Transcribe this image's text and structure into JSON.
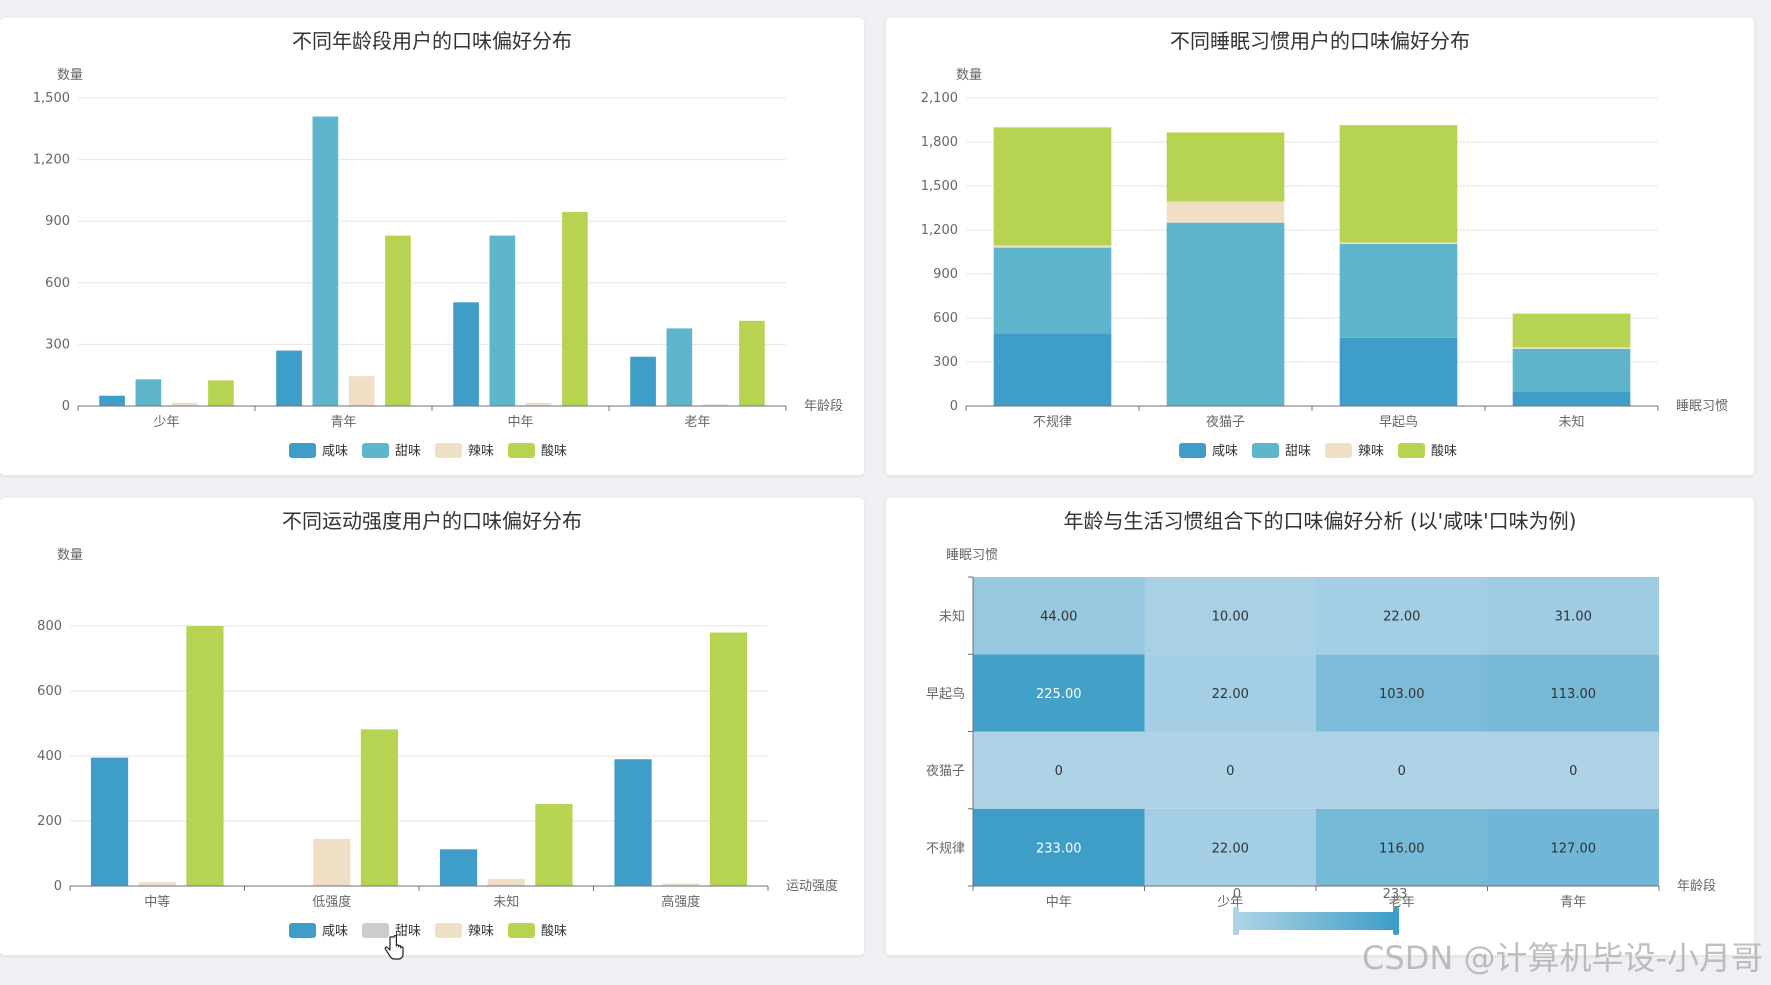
{
  "colors": {
    "salty": "#3e9ec8",
    "sweet": "#5eb5cc",
    "spicy": "#efdfc4",
    "sour": "#b6d452",
    "disabled": "#cccccc",
    "heat_low": "#aed3e6",
    "heat_high": "#3e9ec8"
  },
  "charts": [
    {
      "title": "不同年龄段用户的口味偏好分布",
      "y_name": "数量",
      "x_name": "年龄段"
    },
    {
      "title": "不同睡眠习惯用户的口味偏好分布",
      "y_name": "数量",
      "x_name": "睡眠习惯"
    },
    {
      "title": "不同运动强度用户的口味偏好分布",
      "y_name": "数量",
      "x_name": "运动强度"
    },
    {
      "title": "年龄与生活习惯组合下的口味偏好分析 (以'咸味'口味为例)",
      "y_name": "睡眠习惯",
      "x_name": "年龄段",
      "visualmap_min": "0",
      "visualmap_max": "233"
    }
  ],
  "chart_data": [
    {
      "type": "bar",
      "stacked": false,
      "categories": [
        "少年",
        "青年",
        "中年",
        "老年"
      ],
      "ylim": [
        0,
        1500
      ],
      "yticks": [
        "0",
        "300",
        "600",
        "900",
        "1,200",
        "1,500"
      ],
      "series": [
        {
          "name": "咸味",
          "values": [
            50,
            270,
            505,
            240
          ],
          "visible": true
        },
        {
          "name": "甜味",
          "values": [
            130,
            1410,
            830,
            378
          ],
          "visible": true
        },
        {
          "name": "辣味",
          "values": [
            15,
            145,
            15,
            8
          ],
          "visible": true
        },
        {
          "name": "酸味",
          "values": [
            125,
            830,
            945,
            415
          ],
          "visible": true
        }
      ],
      "legend": "bottom-center",
      "grid": true
    },
    {
      "type": "bar",
      "stacked": true,
      "categories": [
        "不规律",
        "夜猫子",
        "早起鸟",
        "未知"
      ],
      "ylim": [
        0,
        2100
      ],
      "yticks": [
        "0",
        "300",
        "600",
        "900",
        "1,200",
        "1,500",
        "1,800",
        "2,100"
      ],
      "series": [
        {
          "name": "咸味",
          "values": [
            495,
            0,
            465,
            100
          ],
          "visible": true
        },
        {
          "name": "甜味",
          "values": [
            585,
            1250,
            640,
            290
          ],
          "visible": true
        },
        {
          "name": "辣味",
          "values": [
            15,
            145,
            10,
            10
          ],
          "visible": true
        },
        {
          "name": "酸味",
          "values": [
            805,
            470,
            800,
            230
          ],
          "visible": true
        }
      ],
      "legend": "bottom-center",
      "grid": true
    },
    {
      "type": "bar",
      "stacked": false,
      "categories": [
        "中等",
        "低强度",
        "未知",
        "高强度"
      ],
      "ylim": [
        0,
        900
      ],
      "yticks": [
        "0",
        "200",
        "400",
        "600",
        "800"
      ],
      "series": [
        {
          "name": "咸味",
          "values": [
            395,
            0,
            113,
            390
          ],
          "visible": true
        },
        {
          "name": "甜味",
          "values": [
            0,
            0,
            0,
            0
          ],
          "visible": false
        },
        {
          "name": "辣味",
          "values": [
            12,
            145,
            22,
            8
          ],
          "visible": true
        },
        {
          "name": "酸味",
          "values": [
            800,
            482,
            252,
            780
          ],
          "visible": true
        }
      ],
      "legend": "bottom-center",
      "grid": true
    },
    {
      "type": "heatmap",
      "x_categories": [
        "中年",
        "少年",
        "老年",
        "青年"
      ],
      "y_categories": [
        "不规律",
        "夜猫子",
        "早起鸟",
        "未知"
      ],
      "cells": [
        [
          233,
          22,
          116,
          127
        ],
        [
          0,
          0,
          0,
          0
        ],
        [
          225,
          22,
          103,
          113
        ],
        [
          44,
          10,
          22,
          31
        ]
      ],
      "cell_labels": [
        [
          "233.00",
          "22.00",
          "116.00",
          "127.00"
        ],
        [
          "0",
          "0",
          "0",
          "0"
        ],
        [
          "225.00",
          "22.00",
          "103.00",
          "113.00"
        ],
        [
          "44.00",
          "10.00",
          "22.00",
          "31.00"
        ]
      ],
      "visualmap_range": [
        0,
        233
      ]
    }
  ],
  "watermark": "CSDN @计算机毕设-小月哥"
}
